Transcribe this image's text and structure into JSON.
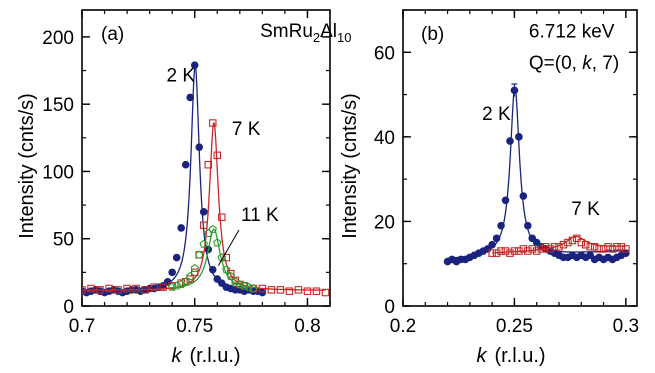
{
  "colors": {
    "2K": "#1a237e",
    "7K": "#c62828",
    "11K": "#2e9e2e",
    "axis": "#000000"
  },
  "chart_data": [
    {
      "panel_label": "(a)",
      "type": "scatter",
      "xlabel": "k",
      "xlabel_unit": "(r.l.u.)",
      "ylabel": "Intensity  (cnts/s)",
      "xlim": [
        0.7,
        0.81
      ],
      "ylim": [
        0,
        220
      ],
      "xticks": [
        0.7,
        0.75,
        0.8
      ],
      "xtick_labels": [
        "0.7",
        "0.75",
        "0.8"
      ],
      "yticks": [
        0,
        50,
        100,
        150,
        200
      ],
      "ytick_labels": [
        "0",
        "50",
        "100",
        "150",
        "200"
      ],
      "annotations": [
        {
          "text": "SmRu",
          "sub": "2",
          "text2": "Al",
          "sub2": "10",
          "x": 0.779,
          "y": 200
        },
        {
          "text": "2 K",
          "x": 0.7375,
          "y": 167
        },
        {
          "text": "7 K",
          "x": 0.7665,
          "y": 127
        },
        {
          "text": "11 K",
          "x": 0.7705,
          "y": 63
        }
      ],
      "series": [
        {
          "name": "2 K",
          "marker": "circle",
          "filled": true,
          "color_key": "2K",
          "fit": {
            "x0": 0.7502,
            "w": 0.0023,
            "amp": 168,
            "base": 11,
            "slope": 0
          },
          "x": [
            0.7,
            0.702,
            0.704,
            0.706,
            0.708,
            0.71,
            0.712,
            0.714,
            0.716,
            0.718,
            0.72,
            0.722,
            0.724,
            0.726,
            0.728,
            0.73,
            0.732,
            0.734,
            0.736,
            0.738,
            0.74,
            0.742,
            0.744,
            0.746,
            0.748,
            0.75,
            0.752,
            0.754,
            0.756,
            0.758,
            0.76,
            0.762,
            0.764,
            0.766,
            0.768,
            0.77,
            0.772,
            0.774,
            0.776,
            0.778,
            0.78
          ],
          "y": [
            11,
            10,
            11,
            12,
            11,
            10,
            11,
            12,
            11,
            10,
            11,
            12,
            12,
            11,
            12,
            13,
            13,
            14,
            15,
            18,
            25,
            36,
            58,
            105,
            155,
            179,
            118,
            70,
            42,
            27,
            20,
            17,
            14,
            13,
            12,
            12,
            11,
            12,
            11,
            11,
            10
          ]
        },
        {
          "name": "7 K",
          "marker": "square",
          "filled": false,
          "color_key": "7K",
          "fit": {
            "x0": 0.7585,
            "w": 0.0024,
            "amp": 125,
            "base": 11.5,
            "slope": 0
          },
          "x": [
            0.7,
            0.704,
            0.708,
            0.712,
            0.716,
            0.72,
            0.724,
            0.728,
            0.732,
            0.736,
            0.74,
            0.744,
            0.746,
            0.748,
            0.75,
            0.752,
            0.754,
            0.756,
            0.758,
            0.76,
            0.762,
            0.764,
            0.766,
            0.768,
            0.77,
            0.772,
            0.776,
            0.78,
            0.784,
            0.788,
            0.792,
            0.796,
            0.8,
            0.804,
            0.808
          ],
          "y": [
            12,
            13,
            12,
            13,
            12,
            13,
            13,
            12,
            14,
            14,
            15,
            17,
            18,
            20,
            25,
            38,
            60,
            105,
            136,
            112,
            66,
            36,
            24,
            19,
            16,
            15,
            13,
            13,
            12,
            12,
            11,
            12,
            11,
            11,
            10
          ]
        },
        {
          "name": "11 K",
          "marker": "pentagon",
          "filled": false,
          "color_key": "11K",
          "fit": {
            "x0": 0.7585,
            "w": 0.0034,
            "amp": 45,
            "base": 12,
            "slope": 0
          },
          "x": [
            0.74,
            0.742,
            0.744,
            0.746,
            0.748,
            0.75,
            0.752,
            0.754,
            0.756,
            0.758,
            0.76,
            0.762,
            0.764,
            0.766,
            0.768,
            0.77,
            0.772,
            0.774,
            0.776
          ],
          "y": [
            14,
            15,
            16,
            18,
            22,
            28,
            38,
            46,
            54,
            57,
            47,
            36,
            27,
            22,
            18,
            16,
            15,
            14,
            13
          ]
        }
      ]
    },
    {
      "panel_label": "(b)",
      "type": "scatter",
      "xlabel": "k",
      "xlabel_unit": "(r.l.u.)",
      "ylabel": "Intensity  (cnts/s)",
      "xlim": [
        0.2,
        0.305
      ],
      "ylim": [
        0,
        70
      ],
      "xticks": [
        0.2,
        0.25,
        0.3
      ],
      "xtick_labels": [
        "0.2",
        "0.25",
        "0.3"
      ],
      "yticks": [
        0,
        20,
        40,
        60
      ],
      "ytick_labels": [
        "0",
        "20",
        "40",
        "60"
      ],
      "annotations": [
        {
          "text": "6.712 keV",
          "x": 0.2565,
          "y": 63.5
        },
        {
          "text": "Q=(0, ",
          "italic": "k",
          "text2": ", 7)",
          "x": 0.2565,
          "y": 56
        },
        {
          "text": "2 K",
          "x": 0.2355,
          "y": 44
        },
        {
          "text": "7 K",
          "x": 0.2755,
          "y": 21.5
        }
      ],
      "series": [
        {
          "name": "2 K",
          "marker": "circle",
          "filled": true,
          "color_key": "2K",
          "fit": {
            "x0": 0.2502,
            "w": 0.0025,
            "amp": 40,
            "base": 11,
            "slope": 25
          },
          "x": [
            0.22,
            0.222,
            0.224,
            0.226,
            0.228,
            0.23,
            0.232,
            0.234,
            0.236,
            0.238,
            0.24,
            0.242,
            0.244,
            0.246,
            0.248,
            0.25,
            0.252,
            0.254,
            0.256,
            0.258,
            0.26,
            0.262,
            0.264,
            0.266,
            0.268,
            0.27,
            0.272,
            0.274,
            0.276,
            0.278,
            0.28,
            0.282,
            0.284,
            0.286,
            0.288,
            0.29,
            0.292,
            0.294,
            0.296,
            0.298,
            0.3
          ],
          "y": [
            10.5,
            11,
            10.5,
            11,
            11,
            11.5,
            12,
            12.5,
            13,
            13.5,
            14.5,
            16,
            19,
            25,
            39,
            51,
            40,
            26,
            19,
            16,
            15,
            14,
            13.5,
            13,
            12.5,
            12,
            11.5,
            11.5,
            12,
            11.5,
            12,
            11.5,
            12,
            11,
            11.5,
            11,
            11.5,
            11,
            11.5,
            12,
            12.5
          ]
        },
        {
          "name": "7 K",
          "marker": "square",
          "filled": false,
          "color_key": "7K",
          "fit": {
            "x0": 0.2775,
            "w": 0.0055,
            "amp": 3.0,
            "base": 12.5,
            "slope": 25
          },
          "x": [
            0.24,
            0.242,
            0.244,
            0.246,
            0.248,
            0.25,
            0.252,
            0.254,
            0.256,
            0.258,
            0.26,
            0.262,
            0.264,
            0.266,
            0.268,
            0.27,
            0.272,
            0.274,
            0.276,
            0.278,
            0.28,
            0.282,
            0.284,
            0.286,
            0.288,
            0.29,
            0.292,
            0.294,
            0.296,
            0.298,
            0.3
          ],
          "y": [
            12.5,
            12.5,
            13,
            13,
            12.5,
            13,
            13,
            13.5,
            13,
            13.5,
            13,
            13.5,
            14,
            13.5,
            14,
            14,
            14.5,
            15,
            15.5,
            16,
            15,
            14.5,
            14,
            14,
            13.5,
            13.5,
            14,
            13.5,
            14,
            14,
            13.5
          ]
        }
      ]
    }
  ]
}
